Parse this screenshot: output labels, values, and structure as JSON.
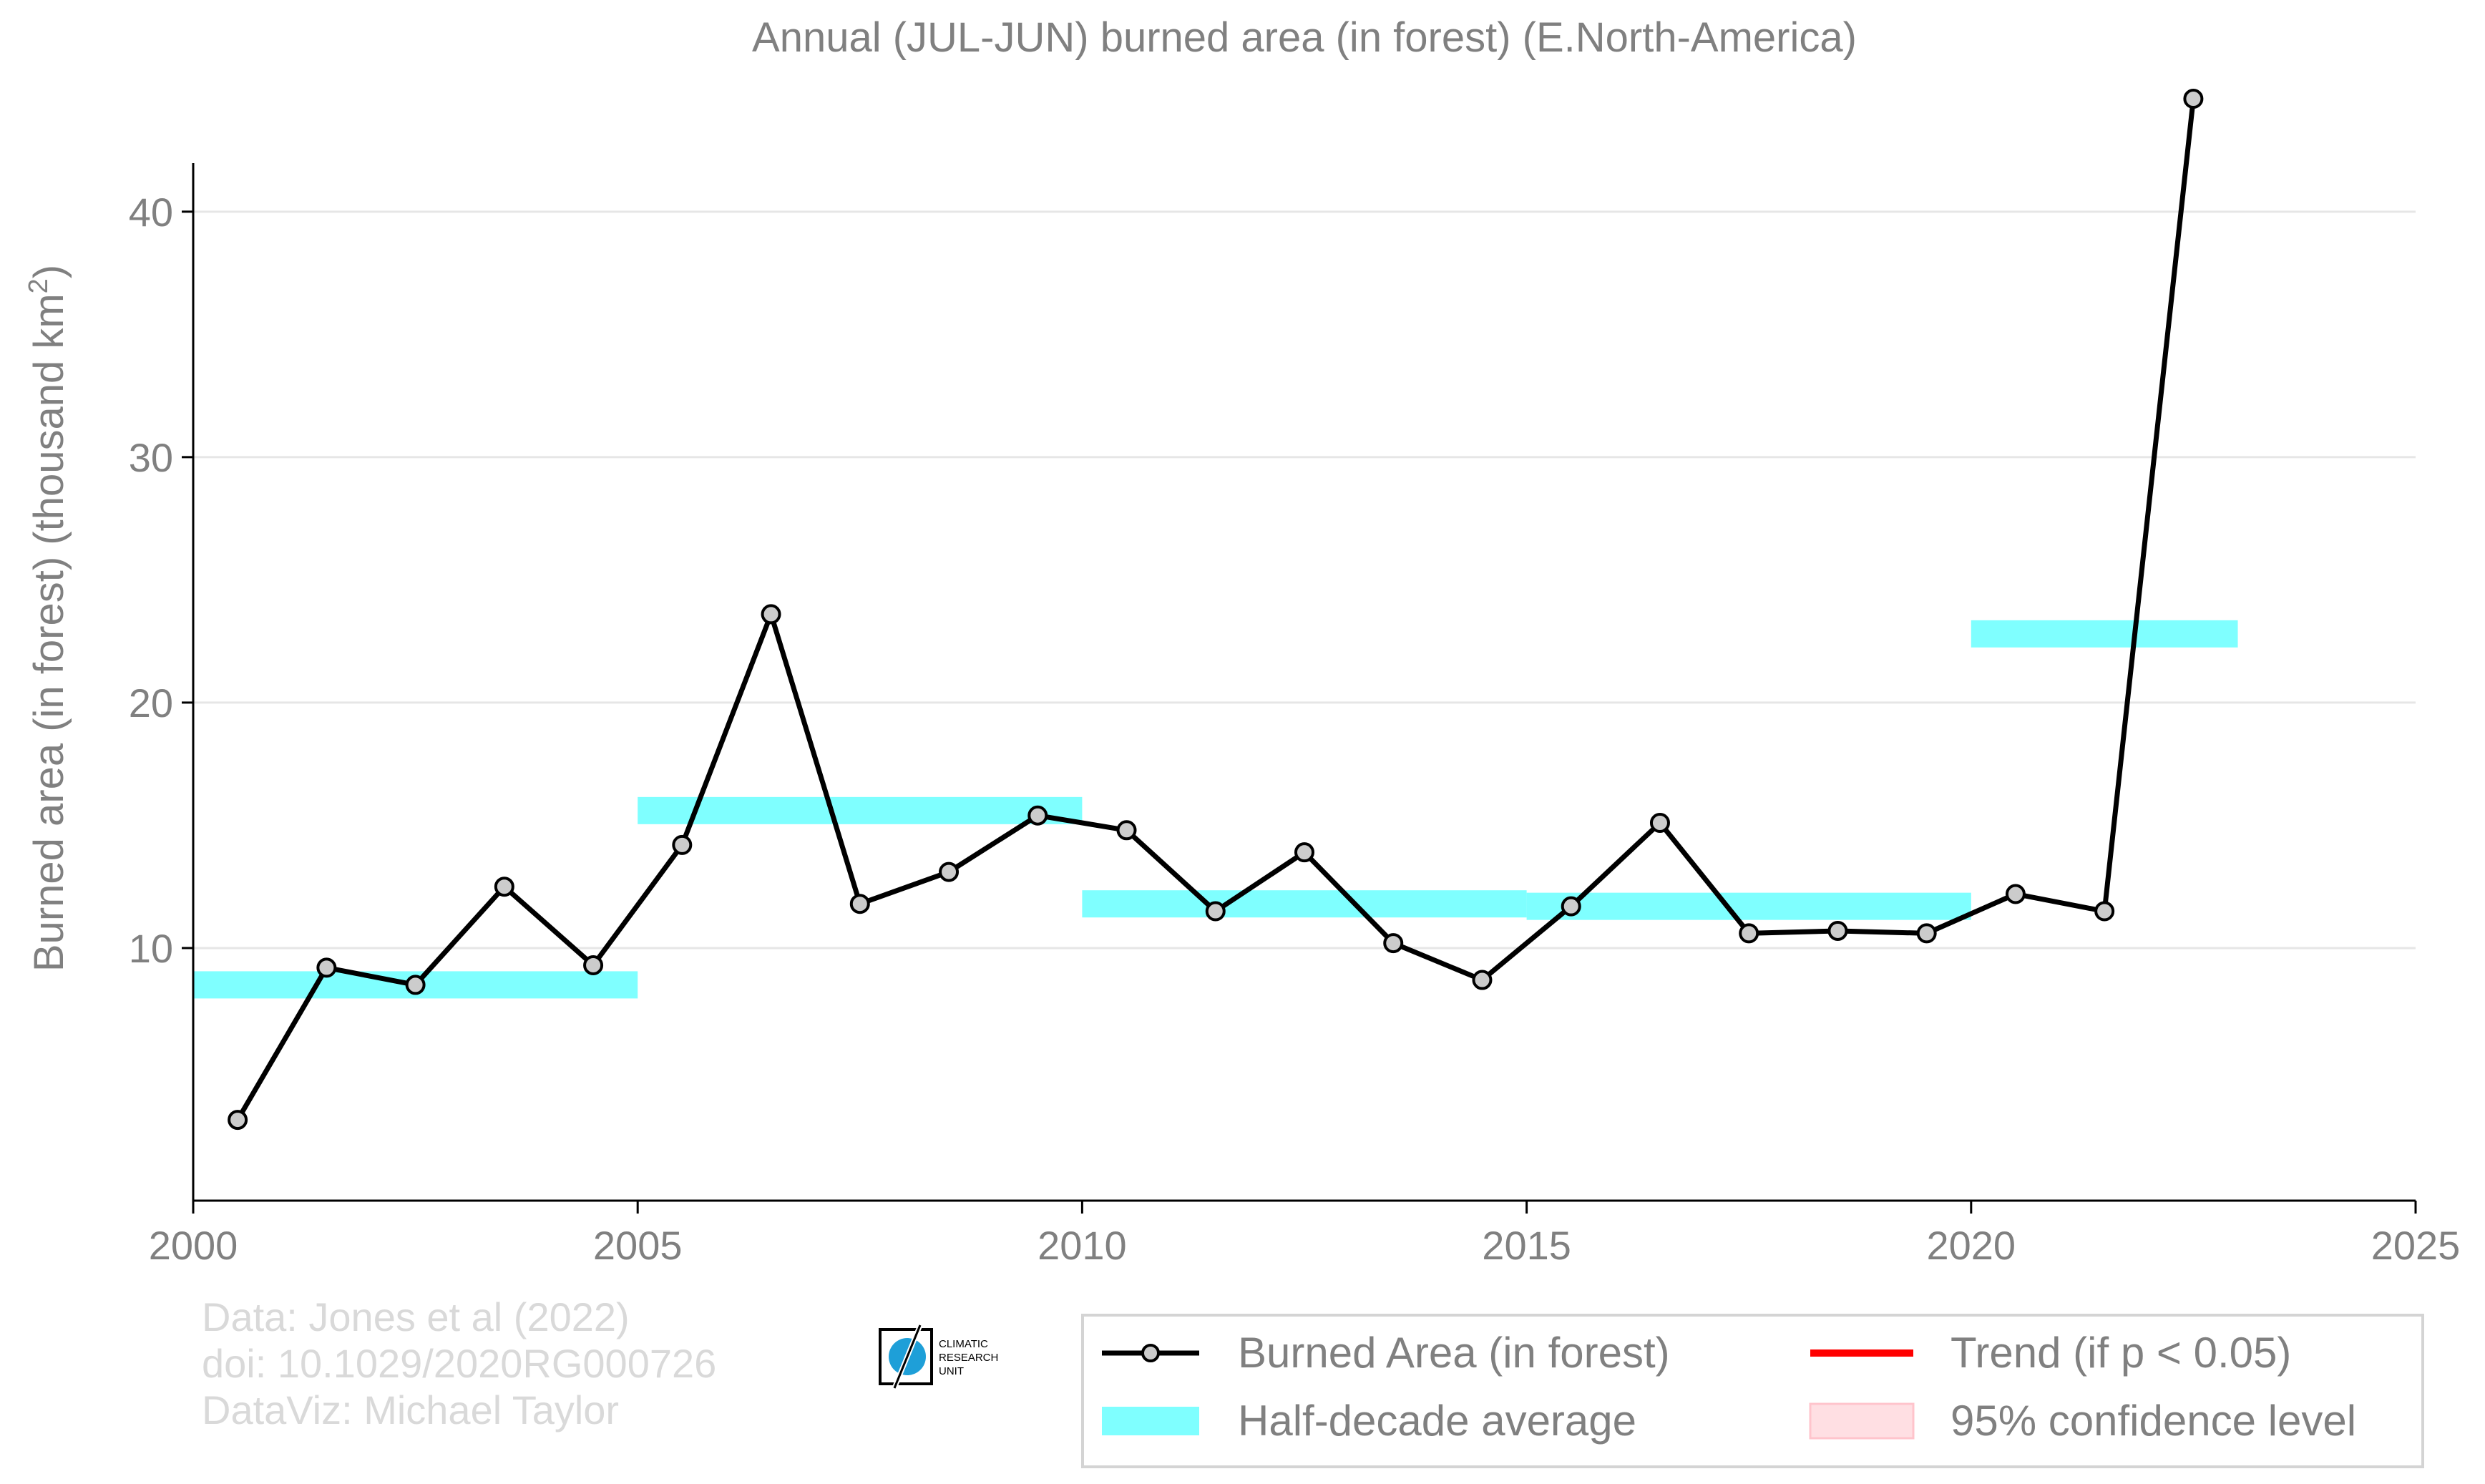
{
  "chart_data": {
    "type": "line",
    "title": "Annual (JUL-JUN) burned area (in forest) (E.North-America)",
    "xlabel": "",
    "ylabel": "Burned area (in forest) (thousand km",
    "ylabel_superscript": "2",
    "ylabel_close": ")",
    "xlim": [
      2000,
      2025
    ],
    "ylim": [
      0,
      46
    ],
    "x_ticks": [
      2000,
      2005,
      2010,
      2015,
      2020,
      2025
    ],
    "x_tick_labels": [
      "2000",
      "2005",
      "2010",
      "2015",
      "2020",
      "2025"
    ],
    "y_ticks": [
      10,
      20,
      30,
      40
    ],
    "y_tick_labels": [
      "10",
      "20",
      "30",
      "40"
    ],
    "grid": "horizontal",
    "series": [
      {
        "name": "Burned Area (in forest)",
        "color": "#000000",
        "marker_fill": "#cccccc",
        "x": [
          2000.5,
          2001.5,
          2002.5,
          2003.5,
          2004.5,
          2005.5,
          2006.5,
          2007.5,
          2008.5,
          2009.5,
          2010.5,
          2011.5,
          2012.5,
          2013.5,
          2014.5,
          2015.5,
          2016.5,
          2017.5,
          2018.5,
          2019.5,
          2020.5,
          2021.5,
          2022.5
        ],
        "values": [
          3.0,
          9.2,
          8.5,
          12.5,
          9.3,
          14.2,
          23.6,
          11.8,
          13.1,
          15.4,
          14.8,
          11.5,
          13.9,
          10.2,
          8.7,
          11.7,
          15.1,
          10.6,
          10.7,
          10.6,
          12.2,
          11.5,
          44.6
        ]
      }
    ],
    "half_decade_average": {
      "name": "Half-decade average",
      "color": "#7fffff",
      "segments": [
        {
          "x_start": 2000,
          "x_end": 2005,
          "value": 8.5
        },
        {
          "x_start": 2005,
          "x_end": 2010,
          "value": 15.6
        },
        {
          "x_start": 2010,
          "x_end": 2015,
          "value": 11.8
        },
        {
          "x_start": 2015,
          "x_end": 2020,
          "value": 11.7
        },
        {
          "x_start": 2020,
          "x_end": 2023,
          "value": 22.8
        }
      ]
    },
    "legend": {
      "position": "bottom-right",
      "entries": [
        {
          "label": "Burned Area (in forest)",
          "kind": "line-marker",
          "color": "#000000"
        },
        {
          "label": "Trend (if p < 0.05)",
          "kind": "line",
          "color": "#ff0000"
        },
        {
          "label": "Half-decade average",
          "kind": "band",
          "color": "#7fffff"
        },
        {
          "label": "95% confidence level",
          "kind": "patch",
          "color": "#ffdfe3"
        }
      ]
    },
    "credits": [
      "Data: Jones et al (2022)",
      "doi: 10.1029/2020RG000726",
      "DataViz: Michael Taylor"
    ],
    "logo_text": [
      "CLIMATIC",
      "RESEARCH",
      "UNIT"
    ],
    "colors": {
      "text": "#808080",
      "grid": "#e6e6e6",
      "axis": "#000000",
      "credit": "#d9d9d9"
    }
  }
}
